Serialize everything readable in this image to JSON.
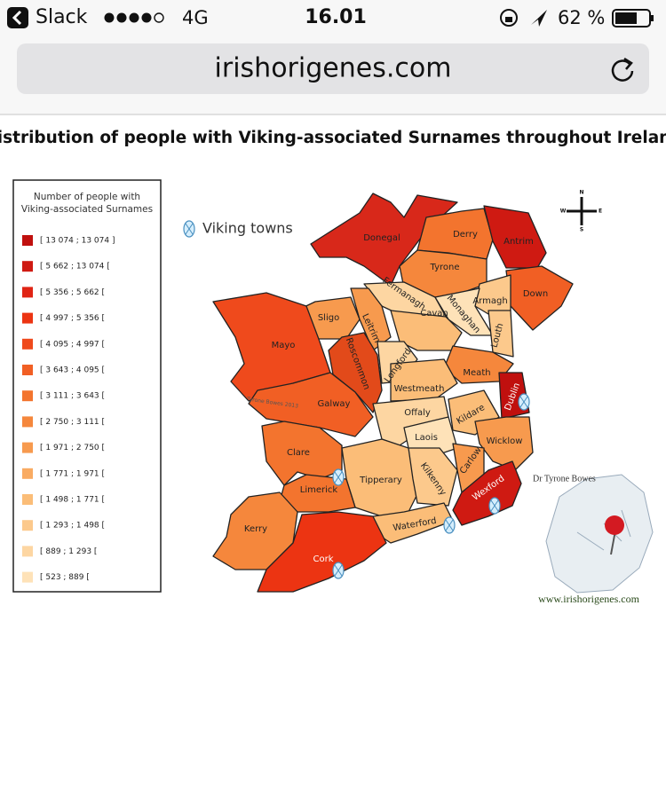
{
  "status_bar": {
    "app": "Slack",
    "network": "4G",
    "time": "16.01",
    "battery": "62 %"
  },
  "address_bar": {
    "url": "irishorigenes.com"
  },
  "map": {
    "title": "Distribution of people with Viking-associated Surnames throughout Ireland",
    "legend": {
      "title": "Number of people with Viking-associated Surnames",
      "items": [
        {
          "label": "[ 13 074 ; 13 074 ]",
          "color": "#c0100e"
        },
        {
          "label": "[ 5 662 ; 13 074 [",
          "color": "#cf1a12"
        },
        {
          "label": "[ 5 356 ; 5 662 [",
          "color": "#e02414"
        },
        {
          "label": "[ 4 997 ; 5 356 [",
          "color": "#ec3412"
        },
        {
          "label": "[ 4 095 ; 4 997 [",
          "color": "#ef4a1c"
        },
        {
          "label": "[ 3 643 ; 4 095 [",
          "color": "#f15f24"
        },
        {
          "label": "[ 3 111 ; 3 643 [",
          "color": "#f3742e"
        },
        {
          "label": "[ 2 750 ; 3 111 [",
          "color": "#f5873c"
        },
        {
          "label": "[ 1 971 ; 2 750 [",
          "color": "#f79a4e"
        },
        {
          "label": "[ 1 771 ; 1 971 [",
          "color": "#f9ab62"
        },
        {
          "label": "[ 1 498 ; 1 771 [",
          "color": "#fbbd78"
        },
        {
          "label": "[ 1 293 ; 1 498 [",
          "color": "#fcc98c"
        },
        {
          "label": "[ 889 ; 1 293 [",
          "color": "#fdd6a2"
        },
        {
          "label": "[ 523 ; 889 [",
          "color": "#fee2b8"
        }
      ]
    },
    "key": "Viking towns",
    "compass": [
      "N",
      "W",
      "E",
      "S"
    ],
    "watermark": "Tyrone Bowes 2013",
    "counties": [
      {
        "name": "Donegal",
        "color": "#d8281a"
      },
      {
        "name": "Derry",
        "color": "#f3742e"
      },
      {
        "name": "Antrim",
        "color": "#cf1a12"
      },
      {
        "name": "Tyrone",
        "color": "#f5873c"
      },
      {
        "name": "Down",
        "color": "#f15f24"
      },
      {
        "name": "Armagh",
        "color": "#fcc98c"
      },
      {
        "name": "Fermanagh",
        "color": "#fdd6a2"
      },
      {
        "name": "Monaghan",
        "color": "#fee2b8"
      },
      {
        "name": "Louth",
        "color": "#fcc98c"
      },
      {
        "name": "Sligo",
        "color": "#f79a4e"
      },
      {
        "name": "Leitrim",
        "color": "#f79a4e"
      },
      {
        "name": "Cavan",
        "color": "#fbbd78"
      },
      {
        "name": "Mayo",
        "color": "#ef4a1c"
      },
      {
        "name": "Roscommon",
        "color": "#e24a1a"
      },
      {
        "name": "Longford",
        "color": "#fdd6a2"
      },
      {
        "name": "Meath",
        "color": "#f5873c"
      },
      {
        "name": "Westmeath",
        "color": "#fbbd78"
      },
      {
        "name": "Galway",
        "color": "#f15f24"
      },
      {
        "name": "Dublin",
        "color": "#c0100e"
      },
      {
        "name": "Offaly",
        "color": "#fdd6a2"
      },
      {
        "name": "Kildare",
        "color": "#fbbd78"
      },
      {
        "name": "Laois",
        "color": "#fee2b8"
      },
      {
        "name": "Wicklow",
        "color": "#f79a4e"
      },
      {
        "name": "Clare",
        "color": "#f3742e"
      },
      {
        "name": "Tipperary",
        "color": "#fbbd78"
      },
      {
        "name": "Kilkenny",
        "color": "#fcc98c"
      },
      {
        "name": "Carlow",
        "color": "#f79a4e"
      },
      {
        "name": "Limerick",
        "color": "#f3742e"
      },
      {
        "name": "Wexford",
        "color": "#cf1a12"
      },
      {
        "name": "Waterford",
        "color": "#fbbd78"
      },
      {
        "name": "Kerry",
        "color": "#f5873c"
      },
      {
        "name": "Cork",
        "color": "#ec3412"
      }
    ],
    "inset": {
      "author": "Dr Tyrone Bowes",
      "website": "www.irishorigenes.com"
    }
  }
}
